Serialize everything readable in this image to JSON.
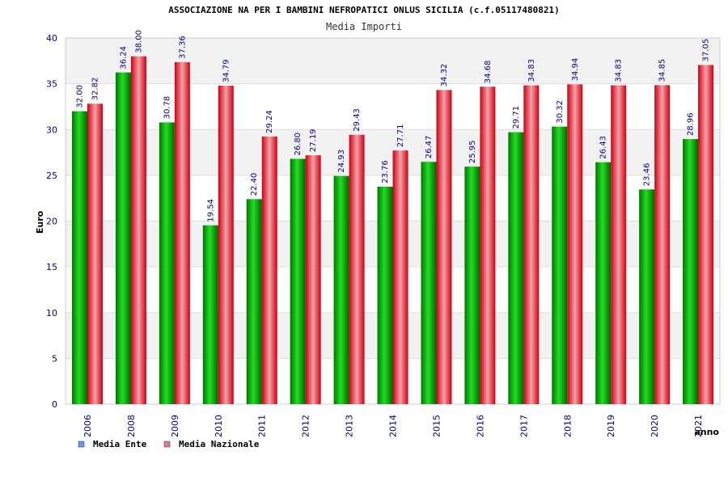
{
  "chart_data": {
    "type": "bar",
    "title": "ASSOCIAZIONE NA PER I BAMBINI NEFROPATICI ONLUS SICILIA (c.f.05117480821)",
    "subtitle": "Media Importi",
    "xlabel": "anno",
    "ylabel": "Euro",
    "ylim": [
      0,
      40
    ],
    "yticks": [
      "0",
      "5",
      "10",
      "15",
      "20",
      "25",
      "30",
      "35",
      "40"
    ],
    "grid": true,
    "legend_position": "bottom-left",
    "categories": [
      "2006",
      "2008",
      "2009",
      "2010",
      "2011",
      "2012",
      "2013",
      "2014",
      "2015",
      "2016",
      "2017",
      "2018",
      "2019",
      "2020",
      "2021"
    ],
    "series": [
      {
        "name": "Media Ente",
        "color": "#00aa00",
        "legend_color": "#6699ee",
        "values": [
          32.0,
          36.24,
          30.78,
          19.54,
          22.4,
          26.8,
          24.93,
          23.76,
          26.47,
          25.95,
          29.71,
          30.32,
          26.43,
          23.46,
          28.96
        ],
        "labels": [
          "32.00",
          "36.24",
          "30.78",
          "19.54",
          "22.40",
          "26.80",
          "24.93",
          "23.76",
          "26.47",
          "25.95",
          "29.71",
          "30.32",
          "26.43",
          "23.46",
          "28.96"
        ]
      },
      {
        "name": "Media Nazionale",
        "color": "#ee2233",
        "legend_color": "#dd77aa",
        "values": [
          32.82,
          38.0,
          37.36,
          34.79,
          29.24,
          27.19,
          29.43,
          27.71,
          34.32,
          34.68,
          34.83,
          34.94,
          34.83,
          34.85,
          37.05
        ],
        "labels": [
          "32.82",
          "38.00",
          "37.36",
          "34.79",
          "29.24",
          "27.19",
          "29.43",
          "27.71",
          "34.32",
          "34.68",
          "34.83",
          "34.94",
          "34.83",
          "34.85",
          "37.05"
        ]
      }
    ]
  }
}
